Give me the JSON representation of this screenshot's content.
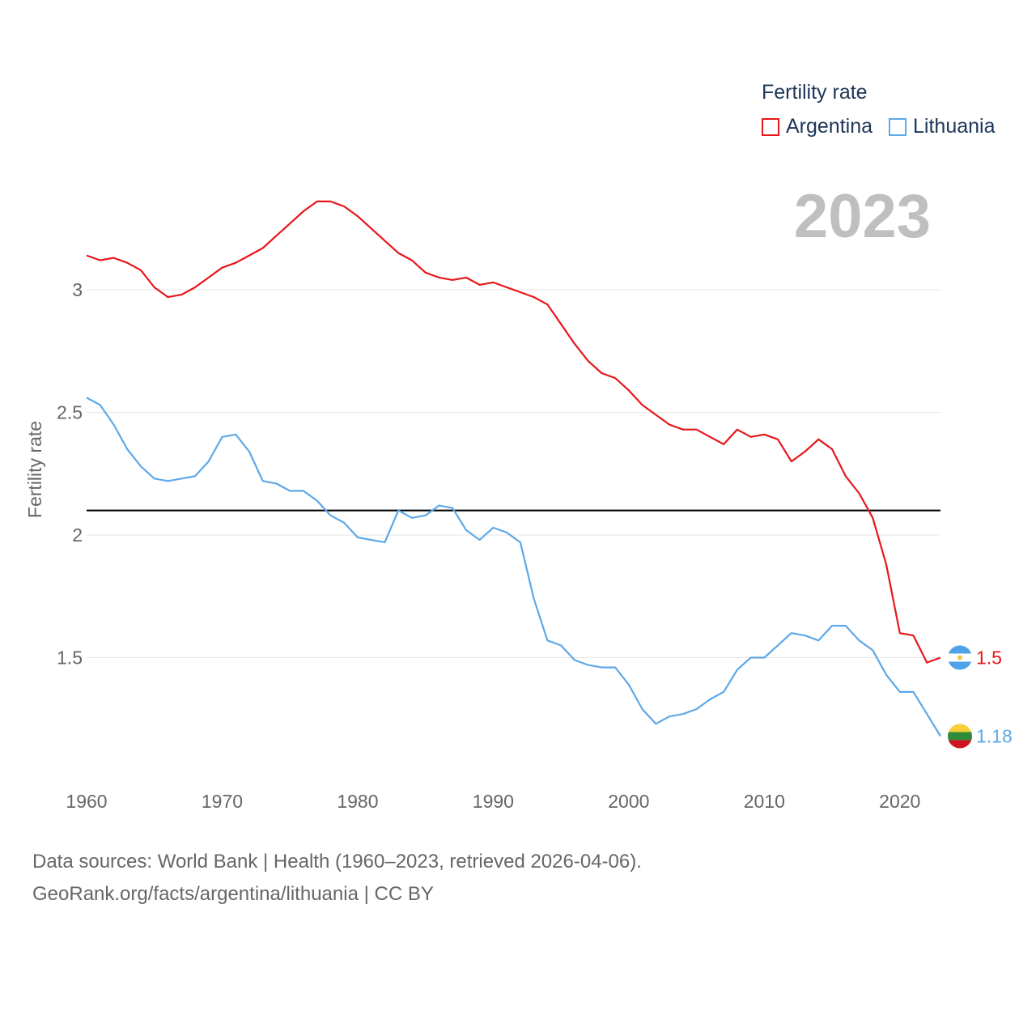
{
  "legend": {
    "title": "Fertility rate",
    "items": [
      {
        "name": "Argentina",
        "color": "#e8161b"
      },
      {
        "name": "Lithuania",
        "color": "#5da8e8"
      }
    ]
  },
  "current_year": "2023",
  "source": {
    "line1": "Data sources: World Bank | Health (1960–2023, retrieved 2026-04-06).",
    "line2": "GeoRank.org/facts/argentina/lithuania | CC BY"
  },
  "chart_data": {
    "type": "line",
    "title": "Fertility rate",
    "xlabel": "",
    "ylabel": "Fertility rate",
    "xlim": [
      1960,
      2023
    ],
    "ylim": [
      1.0,
      3.55
    ],
    "x_ticks": [
      1960,
      1970,
      1980,
      1990,
      2000,
      2010,
      2020
    ],
    "y_ticks": [
      1.5,
      2,
      2.5,
      3
    ],
    "y_tick_labels": [
      "1.5",
      "2",
      "2.5",
      "3"
    ],
    "reference_line": {
      "value": 2.1,
      "color": "#000000"
    },
    "x": [
      1960,
      1961,
      1962,
      1963,
      1964,
      1965,
      1966,
      1967,
      1968,
      1969,
      1970,
      1971,
      1972,
      1973,
      1974,
      1975,
      1976,
      1977,
      1978,
      1979,
      1980,
      1981,
      1982,
      1983,
      1984,
      1985,
      1986,
      1987,
      1988,
      1989,
      1990,
      1991,
      1992,
      1993,
      1994,
      1995,
      1996,
      1997,
      1998,
      1999,
      2000,
      2001,
      2002,
      2003,
      2004,
      2005,
      2006,
      2007,
      2008,
      2009,
      2010,
      2011,
      2012,
      2013,
      2014,
      2015,
      2016,
      2017,
      2018,
      2019,
      2020,
      2021,
      2022,
      2023
    ],
    "series": [
      {
        "name": "Argentina",
        "color": "#e8161b",
        "end_label": "1.5",
        "values": [
          3.14,
          3.12,
          3.13,
          3.11,
          3.08,
          3.01,
          2.97,
          2.98,
          3.01,
          3.05,
          3.09,
          3.11,
          3.14,
          3.17,
          3.22,
          3.27,
          3.32,
          3.36,
          3.36,
          3.34,
          3.3,
          3.25,
          3.2,
          3.15,
          3.12,
          3.07,
          3.05,
          3.04,
          3.05,
          3.02,
          3.03,
          3.01,
          2.99,
          2.97,
          2.94,
          2.86,
          2.78,
          2.71,
          2.66,
          2.64,
          2.59,
          2.53,
          2.49,
          2.45,
          2.43,
          2.43,
          2.4,
          2.37,
          2.43,
          2.4,
          2.41,
          2.39,
          2.3,
          2.34,
          2.39,
          2.35,
          2.24,
          2.17,
          2.07,
          1.88,
          1.6,
          1.59,
          1.48,
          1.5
        ]
      },
      {
        "name": "Lithuania",
        "color": "#5da8e8",
        "end_label": "1.18",
        "values": [
          2.56,
          2.53,
          2.45,
          2.35,
          2.28,
          2.23,
          2.22,
          2.23,
          2.24,
          2.3,
          2.4,
          2.41,
          2.34,
          2.22,
          2.21,
          2.18,
          2.18,
          2.14,
          2.08,
          2.05,
          1.99,
          1.98,
          1.97,
          2.1,
          2.07,
          2.08,
          2.12,
          2.11,
          2.02,
          1.98,
          2.03,
          2.01,
          1.97,
          1.74,
          1.57,
          1.55,
          1.49,
          1.47,
          1.46,
          1.46,
          1.39,
          1.29,
          1.23,
          1.26,
          1.27,
          1.29,
          1.33,
          1.36,
          1.45,
          1.5,
          1.5,
          1.55,
          1.6,
          1.59,
          1.57,
          1.63,
          1.63,
          1.57,
          1.53,
          1.43,
          1.36,
          1.36,
          1.27,
          1.18
        ]
      }
    ]
  }
}
